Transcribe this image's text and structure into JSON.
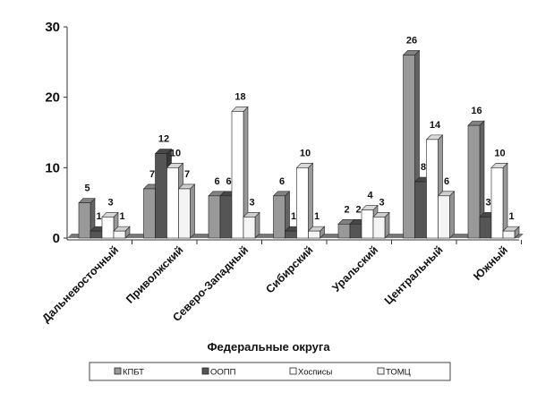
{
  "chart_data": {
    "type": "bar",
    "title": "",
    "xlabel": "Федеральные округа",
    "ylabel": "",
    "ylim": [
      0,
      30
    ],
    "yticks": [
      0,
      10,
      20,
      30
    ],
    "categories": [
      "Дальневосточный",
      "Приволжский",
      "Северо-Западный",
      "Сибирский",
      "Уральский",
      "Центральный",
      "Южный"
    ],
    "series": [
      {
        "name": "КПБТ",
        "color": "#999999",
        "values": [
          5,
          7,
          6,
          6,
          2,
          26,
          16
        ]
      },
      {
        "name": "ООПП",
        "color": "#555555",
        "values": [
          1,
          12,
          6,
          1,
          2,
          8,
          3
        ]
      },
      {
        "name": "Хосписы",
        "color": "#ffffff",
        "values": [
          3,
          10,
          18,
          10,
          4,
          14,
          10
        ]
      },
      {
        "name": "ТОМЦ",
        "color": "#f4f4f4",
        "values": [
          1,
          7,
          3,
          1,
          3,
          6,
          1
        ]
      }
    ],
    "legend_position": "bottom",
    "grid": false
  }
}
